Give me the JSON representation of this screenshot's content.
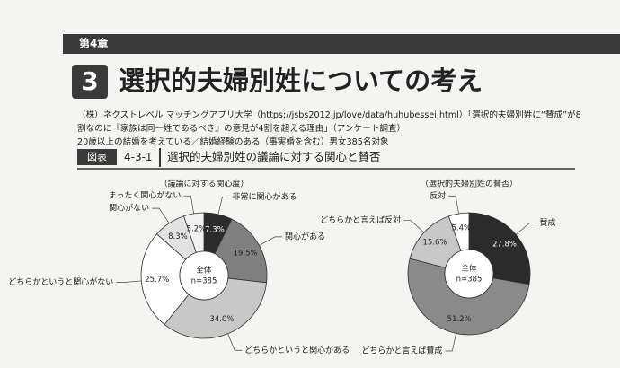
{
  "header": {
    "chapter": "第4章",
    "section_number": "3",
    "title": "選択的夫婦別姓についての考え",
    "source_lines": [
      "（株）ネクストレベル マッチングアプリ大学（https://jsbs2012.jp/love/data/huhubessei.html）「選択的夫婦別姓に“賛成”が8",
      "割なのに『家族は同一姓であるべき』の意見が4割を超える理由」（アンケート調査）",
      "20歳以上の結婚を考えている／結婚経験のある（事実婚を含む）男女385名対象"
    ],
    "figure_label": "図表",
    "figure_number": "4-3-1",
    "figure_title": "選択的夫婦別姓の議論に対する関心と賛否"
  },
  "chart_data": [
    {
      "type": "donut",
      "title": "（議論に対する関心度）",
      "center_text": "全体",
      "center_n": "n=385",
      "categories": [
        "非常に関心がある",
        "関心がある",
        "どちらかというと関心がある",
        "どちらかというと関心がない",
        "関心がない",
        "まったく関心がない"
      ],
      "values": [
        7.3,
        19.5,
        34.0,
        25.7,
        8.3,
        5.2
      ],
      "value_labels": [
        "7.3%",
        "19.5%",
        "34.0%",
        "25.7%",
        "8.3%",
        "5.2%"
      ],
      "colors": [
        "#2b2b2b",
        "#808080",
        "#c8c8c8",
        "#ffffff",
        "#e2e2e2",
        "#f2f2f2"
      ]
    },
    {
      "type": "donut",
      "title": "（選択的夫婦別姓の賛否）",
      "center_text": "全体",
      "center_n": "n=385",
      "categories": [
        "賛成",
        "どちらかと言えば賛成",
        "どちらかと言えば反対",
        "反対"
      ],
      "values": [
        27.8,
        51.2,
        15.6,
        5.4
      ],
      "value_labels": [
        "27.8%",
        "51.2%",
        "15.6%",
        "5.4%"
      ],
      "colors": [
        "#2b2b2b",
        "#8a8a8a",
        "#c8c8c8",
        "#ffffff"
      ]
    }
  ]
}
